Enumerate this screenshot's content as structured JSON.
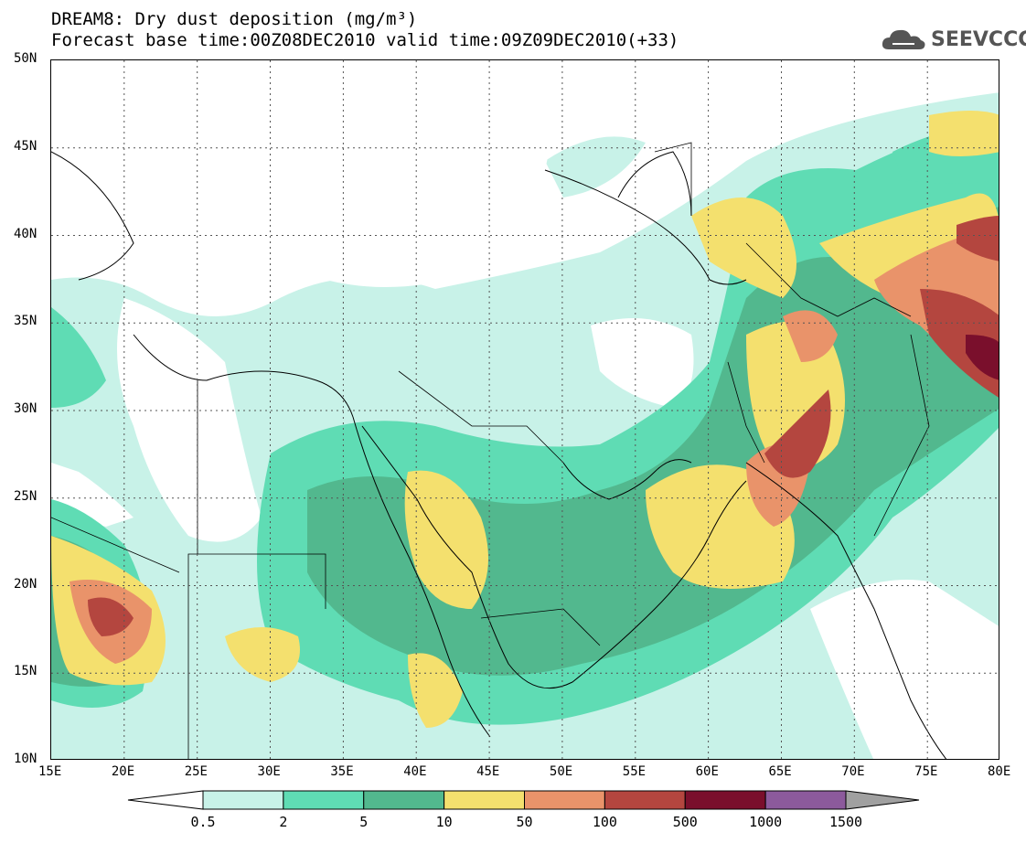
{
  "title": {
    "line1": "DREAM8: Dry dust deposition (mg/m³)",
    "line2": "Forecast base time:00Z08DEC2010 valid time:09Z09DEC2010(+33)"
  },
  "logo": {
    "text": "SEEVCCC",
    "icon": "cloud-icon"
  },
  "map": {
    "lon_range": [
      15,
      80
    ],
    "lat_range": [
      10,
      50
    ],
    "lon_ticks": [
      "15E",
      "20E",
      "25E",
      "30E",
      "35E",
      "40E",
      "45E",
      "50E",
      "55E",
      "60E",
      "65E",
      "70E",
      "75E",
      "80E"
    ],
    "lat_ticks": [
      "50N",
      "45N",
      "40N",
      "35N",
      "30N",
      "25N",
      "20N",
      "15N",
      "10N"
    ],
    "gridlines": true,
    "variable": "Dry dust deposition",
    "units": "mg/m³"
  },
  "colorbar": {
    "levels": [
      "0.5",
      "2",
      "5",
      "10",
      "50",
      "100",
      "500",
      "1000",
      "1500"
    ],
    "colors": [
      "#c8f2e8",
      "#5fdcb4",
      "#52b88e",
      "#f4e06e",
      "#e9936a",
      "#b4463f",
      "#7a0f2c",
      "#8c5a9c"
    ],
    "under_color": "#ffffff",
    "over_color": "#a0a0a0"
  }
}
